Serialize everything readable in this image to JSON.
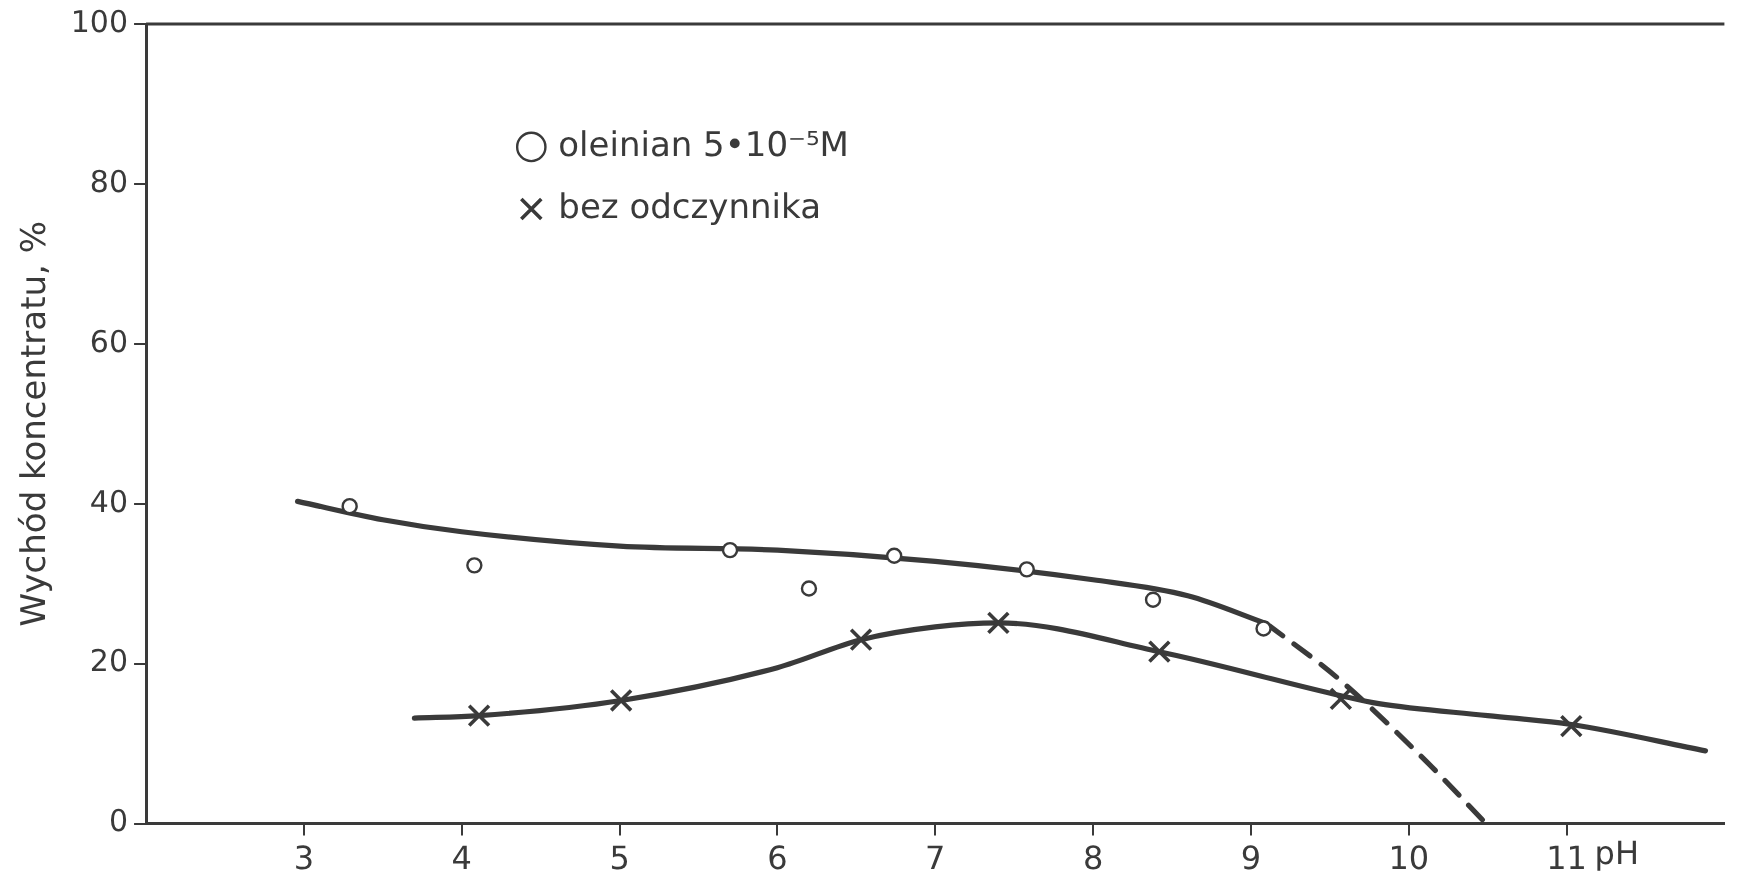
{
  "chart_data": {
    "type": "scatter",
    "xlabel": "pH",
    "ylabel": "Wychód koncentratu, %",
    "xlim": [
      2,
      12
    ],
    "xticks": [
      3,
      4,
      5,
      6,
      7,
      8,
      9,
      10,
      11
    ],
    "ylim": [
      0,
      100
    ],
    "yticks": [
      0,
      20,
      40,
      60,
      80,
      100
    ],
    "grid": false,
    "legend": "top",
    "series": [
      {
        "name": "oleinian 5•10⁻⁵M",
        "marker": "circle",
        "color": "#3a3a3a",
        "x": [
          3.29,
          4.08,
          5.7,
          6.2,
          6.74,
          7.58,
          8.38,
          9.08
        ],
        "values": [
          39.7,
          32.3,
          34.2,
          29.4,
          33.5,
          31.8,
          28.0,
          24.4
        ]
      },
      {
        "name": "bez odczynnika",
        "marker": "cross",
        "color": "#3a3a3a",
        "x": [
          4.11,
          5.01,
          6.53,
          7.4,
          8.42,
          9.57,
          11.03
        ],
        "values": [
          13.5,
          15.4,
          23.0,
          25.1,
          21.5,
          15.6,
          12.2
        ]
      },
      {
        "type": "line",
        "marker": "none",
        "line_style": "solid",
        "color": "#3a3a3a",
        "x": [
          2.96,
          3.5,
          4.0,
          5.0,
          6.0,
          7.0,
          8.0,
          8.6,
          9.1
        ],
        "values": [
          40.3,
          38.0,
          36.5,
          34.7,
          34.2,
          32.8,
          30.5,
          28.5,
          25.0
        ]
      },
      {
        "type": "line",
        "marker": "none",
        "line_style": "dashed",
        "color": "#3a3a3a",
        "x": [
          9.1,
          9.55,
          10.1,
          10.49
        ],
        "values": [
          25.0,
          18.2,
          8.0,
          0
        ]
      },
      {
        "type": "line",
        "marker": "none",
        "line_style": "solid",
        "color": "#3a3a3a",
        "x": [
          3.7,
          4.11,
          5.01,
          6.0,
          6.53,
          7.0,
          7.4,
          8.42,
          9.57,
          9.81,
          10.5,
          11.03,
          11.88
        ],
        "values": [
          13.2,
          13.5,
          15.4,
          19.5,
          23.0,
          24.6,
          25.1,
          21.5,
          16.0,
          15.0,
          13.5,
          12.4,
          9.1
        ]
      }
    ]
  }
}
